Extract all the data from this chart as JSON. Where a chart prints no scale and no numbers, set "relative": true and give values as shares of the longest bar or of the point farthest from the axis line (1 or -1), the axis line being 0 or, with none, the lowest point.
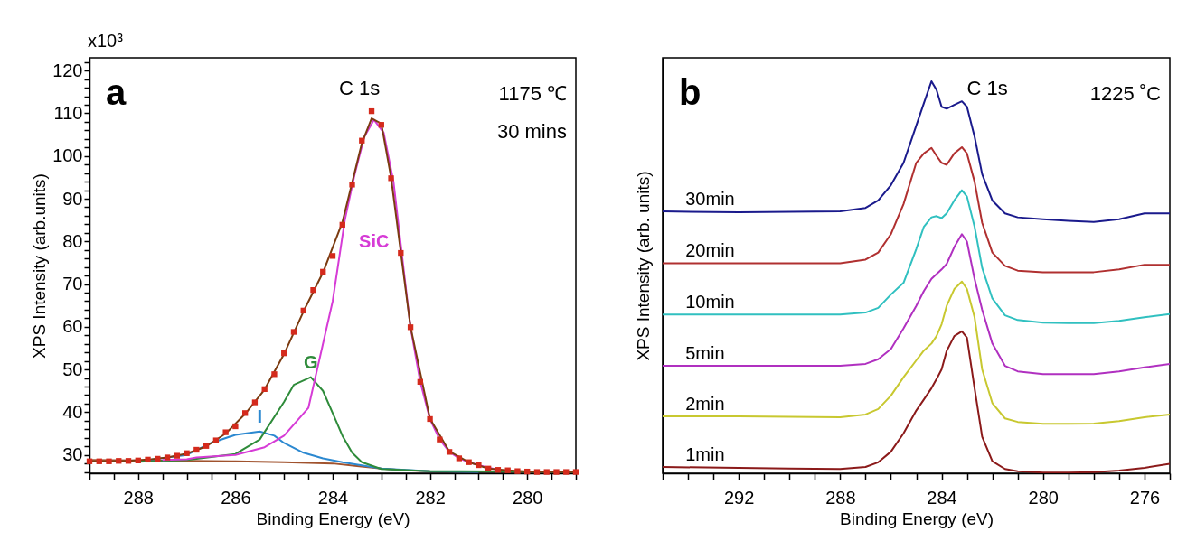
{
  "chart_data": [
    {
      "type": "line",
      "xlabel": "Binding Energy (eV)",
      "ylabel": "XPS Intensity (arb.units)",
      "xlim": [
        289,
        279
      ],
      "ylim": [
        25.7,
        123
      ],
      "xticks": [
        {
          "value": 289,
          "label": null
        },
        {
          "value": 288.5,
          "label": null
        },
        288,
        {
          "value": 287.5,
          "label": null
        },
        {
          "value": 287,
          "label": null
        },
        {
          "value": 286.5,
          "label": null
        },
        286,
        {
          "value": 285.5,
          "label": null
        },
        {
          "value": 285,
          "label": null
        },
        {
          "value": 284.5,
          "label": null
        },
        284,
        {
          "value": 283.5,
          "label": null
        },
        {
          "value": 283,
          "label": null
        },
        {
          "value": 282.5,
          "label": null
        },
        282,
        {
          "value": 281.5,
          "label": null
        },
        {
          "value": 281,
          "label": null
        },
        {
          "value": 280.5,
          "label": null
        },
        280,
        {
          "value": 279.5,
          "label": null
        },
        {
          "value": 279,
          "label": null
        }
      ],
      "yticks": [
        {
          "value": 26,
          "label": null
        },
        {
          "value": 28,
          "label": null
        },
        30,
        {
          "value": 32,
          "label": null
        },
        {
          "value": 34,
          "label": null
        },
        {
          "value": 36,
          "label": null
        },
        {
          "value": 38,
          "label": null
        },
        40,
        {
          "value": 42,
          "label": null
        },
        {
          "value": 44,
          "label": null
        },
        {
          "value": 46,
          "label": null
        },
        {
          "value": 48,
          "label": null
        },
        50,
        {
          "value": 52,
          "label": null
        },
        {
          "value": 54,
          "label": null
        },
        {
          "value": 56,
          "label": null
        },
        {
          "value": 58,
          "label": null
        },
        60,
        {
          "value": 62,
          "label": null
        },
        {
          "value": 64,
          "label": null
        },
        {
          "value": 66,
          "label": null
        },
        {
          "value": 68,
          "label": null
        },
        70,
        {
          "value": 72,
          "label": null
        },
        {
          "value": 74,
          "label": null
        },
        {
          "value": 76,
          "label": null
        },
        {
          "value": 78,
          "label": null
        },
        80,
        {
          "value": 82,
          "label": null
        },
        {
          "value": 84,
          "label": null
        },
        {
          "value": 86,
          "label": null
        },
        {
          "value": 88,
          "label": null
        },
        90,
        {
          "value": 92,
          "label": null
        },
        {
          "value": 94,
          "label": null
        },
        {
          "value": 96,
          "label": null
        },
        {
          "value": 98,
          "label": null
        },
        100,
        {
          "value": 102,
          "label": null
        },
        {
          "value": 104,
          "label": null
        },
        {
          "value": 106,
          "label": null
        },
        {
          "value": 108,
          "label": null
        },
        110,
        {
          "value": 112,
          "label": null
        },
        {
          "value": 114,
          "label": null
        },
        {
          "value": 116,
          "label": null
        },
        {
          "value": 118,
          "label": null
        },
        120,
        {
          "value": 122,
          "label": null
        }
      ],
      "annotations": [
        "a",
        "1175 ℃",
        "30 mins",
        "x10³",
        "C 1s"
      ],
      "series": [
        {
          "type": "line",
          "color": "#a0522d",
          "x": [
            289,
            288,
            287,
            286,
            285,
            284,
            283.5,
            283,
            282.5,
            282,
            281,
            279
          ],
          "values": [
            28.8,
            28.7,
            28.6,
            28.5,
            28.3,
            28.0,
            27.4,
            26.8,
            26.4,
            26.2,
            26.1,
            26.0
          ]
        },
        {
          "type": "line",
          "name": "I",
          "color": "#2b88d0",
          "x": [
            288,
            287,
            286.5,
            286,
            285.5,
            285.2,
            285.0,
            284.6,
            284.2,
            283.8,
            283.0,
            282,
            281
          ],
          "values": [
            28.5,
            30.0,
            32.8,
            34.7,
            35.5,
            34.5,
            32.8,
            30.5,
            29.2,
            28.3,
            26.8,
            26.2,
            26.0
          ]
        },
        {
          "type": "line",
          "name": "G",
          "color": "#2e8b3a",
          "x": [
            288,
            287,
            286,
            285.5,
            285,
            284.8,
            284.45,
            284.2,
            284.0,
            283.8,
            283.6,
            283.4,
            283.0,
            282,
            279
          ],
          "values": [
            28.4,
            28.8,
            30.2,
            33.6,
            42.4,
            46.4,
            48.2,
            45.0,
            39.8,
            34.5,
            30.5,
            28.3,
            26.7,
            26.2,
            26.0
          ]
        },
        {
          "type": "line",
          "name": "SiC",
          "color": "#d63bd6",
          "x": [
            287.5,
            287,
            286.8,
            286,
            285.4,
            285.0,
            284.5,
            284.2,
            284.0,
            283.75,
            283.55,
            283.35,
            283.15,
            282.95,
            282.75,
            282.55,
            282.4,
            282.2,
            282.0,
            281.8,
            281.6,
            281.4,
            281.2,
            281.0,
            280.6
          ],
          "values": [
            28.8,
            29.0,
            29.4,
            30.0,
            31.8,
            34.5,
            41.0,
            56.0,
            66.0,
            85.0,
            95.6,
            104.5,
            108.5,
            105.4,
            94.0,
            74.4,
            59.9,
            47.1,
            38.4,
            33.6,
            30.7,
            29.2,
            28.3,
            27.6,
            26.5
          ]
        },
        {
          "type": "line",
          "color": "#7b3b10",
          "x": [
            289,
            288.6,
            288.2,
            287.8,
            287.4,
            287.0,
            286.6,
            286.2,
            285.8,
            285.4,
            285.0,
            284.6,
            284.2,
            283.8,
            283.4,
            283.2,
            283.0,
            282.8,
            282.4,
            282.0,
            281.6,
            281.2,
            280.8,
            280.4,
            280.0,
            279
          ],
          "values": [
            28.5,
            28.5,
            28.6,
            28.9,
            29.4,
            30.3,
            32.0,
            35.0,
            39.6,
            45.3,
            53.6,
            63.6,
            72.7,
            84.5,
            103.0,
            108.8,
            107.6,
            95.0,
            60.0,
            38.5,
            30.8,
            28.3,
            26.8,
            26.4,
            26.1,
            26.0
          ]
        },
        {
          "type": "scatter",
          "marker": "square",
          "color": "#d42a1c",
          "x": [
            289.0,
            288.8,
            288.6,
            288.4,
            288.2,
            288.0,
            287.8,
            287.6,
            287.4,
            287.2,
            287.0,
            286.8,
            286.6,
            286.4,
            286.2,
            286.0,
            285.8,
            285.6,
            285.4,
            285.2,
            285.0,
            284.8,
            284.6,
            284.4,
            284.2,
            284.0,
            283.8,
            283.6,
            283.4,
            283.2,
            283.0,
            282.8,
            282.6,
            282.4,
            282.2,
            282.0,
            281.8,
            281.6,
            281.4,
            281.2,
            281.0,
            280.8,
            280.6,
            280.4,
            280.2,
            280.0,
            279.8,
            279.6,
            279.4,
            279.2,
            279.0
          ],
          "values": [
            28.5,
            28.5,
            28.5,
            28.6,
            28.6,
            28.7,
            28.9,
            29.1,
            29.4,
            29.8,
            30.4,
            31.2,
            32.1,
            33.4,
            35.3,
            36.7,
            39.8,
            42.3,
            45.4,
            48.9,
            53.8,
            58.8,
            63.8,
            68.6,
            72.9,
            76.6,
            83.9,
            93.3,
            103.6,
            110.5,
            107.3,
            94.8,
            77.3,
            59.9,
            47.1,
            38.4,
            33.6,
            30.7,
            29.2,
            28.3,
            27.6,
            26.8,
            26.5,
            26.4,
            26.2,
            26.1,
            26.0,
            26.0,
            26.0,
            26.0,
            26.0
          ]
        }
      ]
    },
    {
      "type": "line",
      "relative": true,
      "xlabel": "Binding Energy (eV)",
      "ylabel": "XPS Intensity (arb. units)",
      "xlim": [
        295,
        275
      ],
      "xticks": [
        {
          "value": 295,
          "label": null
        },
        {
          "value": 294,
          "label": null
        },
        {
          "value": 293,
          "label": null
        },
        292,
        {
          "value": 291,
          "label": null
        },
        {
          "value": 290,
          "label": null
        },
        {
          "value": 289,
          "label": null
        },
        288,
        {
          "value": 287,
          "label": null
        },
        {
          "value": 286,
          "label": null
        },
        {
          "value": 285,
          "label": null
        },
        284,
        {
          "value": 283,
          "label": null
        },
        {
          "value": 282,
          "label": null
        },
        {
          "value": 281,
          "label": null
        },
        280,
        {
          "value": 279,
          "label": null
        },
        {
          "value": 278,
          "label": null
        },
        {
          "value": 277,
          "label": null
        },
        276,
        {
          "value": 275,
          "label": null
        }
      ],
      "annotations": [
        "b",
        "1225 ˚C",
        "C 1s"
      ],
      "x": [
        295,
        292,
        290,
        288,
        287,
        286.5,
        286,
        285.5,
        285,
        284.7,
        284.4,
        284.2,
        284.0,
        283.8,
        283.5,
        283.2,
        283.0,
        282.7,
        282.4,
        282.0,
        281.5,
        281,
        280,
        279,
        278,
        277,
        276,
        275
      ],
      "series": [
        {
          "name": "30min",
          "color": "#1a1a8c",
          "values": [
            0.668,
            0.666,
            0.667,
            0.668,
            0.677,
            0.696,
            0.735,
            0.792,
            0.887,
            0.944,
            1.0,
            0.978,
            0.935,
            0.93,
            0.94,
            0.949,
            0.935,
            0.859,
            0.763,
            0.696,
            0.663,
            0.653,
            0.648,
            0.644,
            0.641,
            0.648,
            0.663,
            0.663
          ]
        },
        {
          "name": "20min",
          "color": "#b03030",
          "values": [
            0.536,
            0.536,
            0.536,
            0.536,
            0.545,
            0.563,
            0.61,
            0.687,
            0.792,
            0.816,
            0.83,
            0.81,
            0.792,
            0.787,
            0.816,
            0.832,
            0.816,
            0.744,
            0.639,
            0.563,
            0.529,
            0.517,
            0.513,
            0.513,
            0.513,
            0.52,
            0.532,
            0.532
          ]
        },
        {
          "name": "10min",
          "color": "#30c0c0",
          "values": [
            0.405,
            0.405,
            0.405,
            0.405,
            0.41,
            0.422,
            0.456,
            0.486,
            0.572,
            0.629,
            0.653,
            0.656,
            0.651,
            0.663,
            0.696,
            0.722,
            0.706,
            0.629,
            0.524,
            0.446,
            0.403,
            0.391,
            0.384,
            0.383,
            0.383,
            0.389,
            0.398,
            0.406
          ]
        },
        {
          "name": "5min",
          "color": "#b030c0",
          "values": [
            0.274,
            0.274,
            0.274,
            0.274,
            0.279,
            0.291,
            0.317,
            0.37,
            0.427,
            0.465,
            0.496,
            0.508,
            0.52,
            0.534,
            0.577,
            0.61,
            0.591,
            0.496,
            0.417,
            0.331,
            0.274,
            0.26,
            0.253,
            0.253,
            0.253,
            0.26,
            0.27,
            0.279
          ]
        },
        {
          "name": "2min",
          "color": "#c8c830",
          "values": [
            0.145,
            0.145,
            0.144,
            0.143,
            0.15,
            0.164,
            0.198,
            0.245,
            0.288,
            0.313,
            0.331,
            0.35,
            0.38,
            0.427,
            0.47,
            0.489,
            0.47,
            0.398,
            0.265,
            0.179,
            0.14,
            0.131,
            0.126,
            0.126,
            0.127,
            0.133,
            0.143,
            0.15
          ]
        },
        {
          "name": "1min",
          "color": "#8b1a1a",
          "values": [
            0.016,
            0.014,
            0.012,
            0.011,
            0.016,
            0.028,
            0.055,
            0.102,
            0.16,
            0.188,
            0.217,
            0.24,
            0.265,
            0.312,
            0.35,
            0.362,
            0.346,
            0.217,
            0.093,
            0.031,
            0.011,
            0.005,
            0.002,
            0.002,
            0.003,
            0.007,
            0.014,
            0.024
          ]
        }
      ]
    }
  ]
}
